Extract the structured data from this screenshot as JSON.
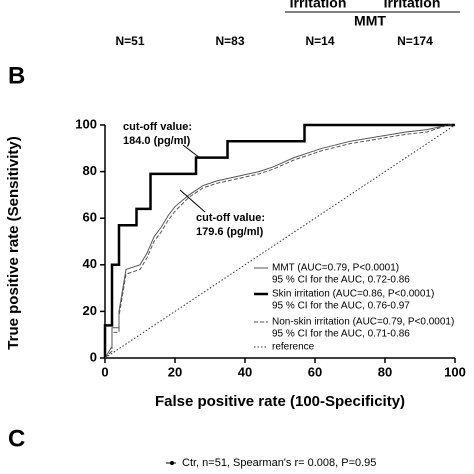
{
  "panel_a": {
    "headers": [
      "Irritation",
      "Irritation"
    ],
    "group": "MMT",
    "counts": [
      "N=51",
      "N=83",
      "N=14",
      "N=174"
    ]
  },
  "panel_b_label": "B",
  "chart_data": {
    "type": "line",
    "xlabel": "False positive rate (100-Specificity)",
    "ylabel": "True positive rate (Sensitivity)",
    "xlim": [
      0,
      100
    ],
    "ylim": [
      0,
      100
    ],
    "xticks": [
      0,
      20,
      40,
      60,
      80,
      100
    ],
    "yticks": [
      0,
      20,
      40,
      60,
      80,
      100
    ],
    "series": [
      {
        "name": "MMT (AUC=0.79, P<0.0001)",
        "ci": "95 % CI for the AUC, 0.72-0.86",
        "color": "#555555",
        "style": "solid",
        "width": 1,
        "x": [
          0,
          2,
          2,
          4,
          4,
          6,
          10,
          12,
          14,
          16,
          18,
          20,
          24,
          28,
          32,
          38,
          44,
          48,
          54,
          58,
          62,
          70,
          78,
          86,
          92,
          98,
          100
        ],
        "y": [
          0,
          5,
          13,
          13,
          20,
          38,
          40,
          45,
          52,
          56,
          61,
          65,
          70,
          74,
          76,
          78,
          80,
          82,
          86,
          88,
          90,
          93,
          95,
          97,
          98,
          100,
          100
        ]
      },
      {
        "name": "Skin irritation (AUC=0.86, P<0.0001)",
        "ci": "95 % CI for the AUC, 0.76-0.97",
        "color": "#000000",
        "style": "solid",
        "width": 2.5,
        "x": [
          0,
          0,
          2,
          2,
          4,
          4,
          9,
          9,
          13,
          13,
          26,
          26,
          35,
          35,
          57,
          57,
          100
        ],
        "y": [
          0,
          14,
          14,
          40,
          40,
          57,
          57,
          64,
          64,
          79,
          79,
          86,
          86,
          93,
          93,
          100,
          100
        ]
      },
      {
        "name": "Non-skin irritation (AUC=0.79, P<0.0001)",
        "ci": "95 % CI for the AUC, 0.71-0.86",
        "color": "#555555",
        "style": "dashed",
        "width": 1,
        "x": [
          0,
          2,
          2,
          4,
          4,
          6,
          10,
          12,
          14,
          16,
          18,
          20,
          24,
          28,
          32,
          38,
          44,
          48,
          54,
          58,
          62,
          70,
          78,
          86,
          92,
          98,
          100
        ],
        "y": [
          0,
          3,
          11,
          11,
          18,
          36,
          38,
          43,
          50,
          54,
          59,
          63,
          69,
          73,
          75,
          77,
          79,
          81,
          85,
          87,
          89,
          92,
          94,
          96,
          97,
          100,
          100
        ]
      },
      {
        "name": "reference",
        "color": "#333333",
        "style": "dotted",
        "width": 1,
        "x": [
          0,
          100
        ],
        "y": [
          0,
          100
        ]
      }
    ],
    "annotations": [
      {
        "lines": [
          "cut-off value:",
          "184.0 (pg/ml)"
        ],
        "x": 27,
        "y": 86
      },
      {
        "lines": [
          "cut-off value:",
          "179.6 (pg/ml)"
        ],
        "x": 21,
        "y": 72
      }
    ]
  },
  "panel_c_label": "C",
  "panel_c_legend": "Ctr, n=51, Spearman's r= 0.008, P=0.95"
}
